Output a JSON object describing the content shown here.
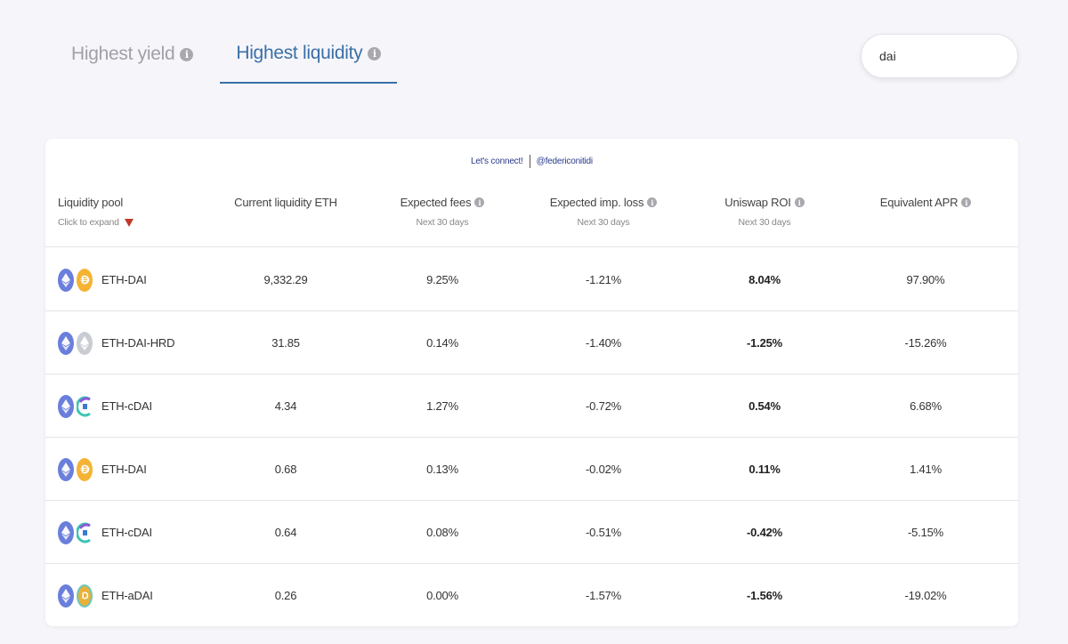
{
  "tabs": [
    {
      "label": "Highest yield",
      "active": false
    },
    {
      "label": "Highest liquidity",
      "active": true
    }
  ],
  "search": {
    "value": "dai"
  },
  "connect": {
    "text": "Let's connect!",
    "handle": "@federiconitidi"
  },
  "table": {
    "headers": {
      "pool": {
        "title": "Liquidity pool",
        "sub": "Click to expand"
      },
      "liquidity": {
        "title": "Current liquidity ETH"
      },
      "fees": {
        "title": "Expected fees",
        "sub": "Next 30 days"
      },
      "loss": {
        "title": "Expected imp. loss",
        "sub": "Next 30 days"
      },
      "roi": {
        "title": "Uniswap ROI",
        "sub": "Next 30 days"
      },
      "apr": {
        "title": "Equivalent APR"
      }
    },
    "rows": [
      {
        "pool": "ETH-DAI",
        "token2": "dai-icon",
        "liquidity": "9,332.29",
        "fees": "9.25%",
        "loss": "-1.21%",
        "roi": "8.04%",
        "apr": "97.90%"
      },
      {
        "pool": "ETH-DAI-HRD",
        "token2": "hrd-icon",
        "liquidity": "31.85",
        "fees": "0.14%",
        "loss": "-1.40%",
        "roi": "-1.25%",
        "apr": "-15.26%"
      },
      {
        "pool": "ETH-cDAI",
        "token2": "cdai-icon",
        "liquidity": "4.34",
        "fees": "1.27%",
        "loss": "-0.72%",
        "roi": "0.54%",
        "apr": "6.68%"
      },
      {
        "pool": "ETH-DAI",
        "token2": "dai-icon",
        "liquidity": "0.68",
        "fees": "0.13%",
        "loss": "-0.02%",
        "roi": "0.11%",
        "apr": "1.41%"
      },
      {
        "pool": "ETH-cDAI",
        "token2": "cdai-icon",
        "liquidity": "0.64",
        "fees": "0.08%",
        "loss": "-0.51%",
        "roi": "-0.42%",
        "apr": "-5.15%"
      },
      {
        "pool": "ETH-aDAI",
        "token2": "adai-icon",
        "liquidity": "0.26",
        "fees": "0.00%",
        "loss": "-1.57%",
        "roi": "-1.56%",
        "apr": "-19.02%"
      }
    ]
  },
  "colors": {
    "accent": "#3a6fa8",
    "eth": "#6a7fdb",
    "dai": "#f5b333",
    "arrow": "#c0392b"
  }
}
